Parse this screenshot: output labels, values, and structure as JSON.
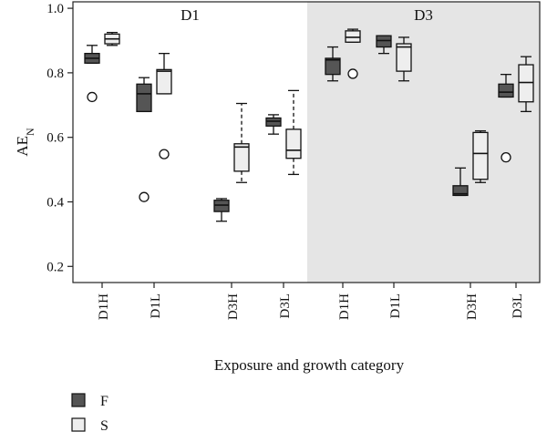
{
  "chart_data": {
    "type": "box",
    "ylabel": "AE",
    "ylabel_sub": "N",
    "xlabel": "Exposure and growth category",
    "ylim": [
      0.15,
      1.02
    ],
    "yticks": [
      {
        "v": 0.2,
        "label": "0.2"
      },
      {
        "v": 0.4,
        "label": "0.4"
      },
      {
        "v": 0.6,
        "label": "0.6"
      },
      {
        "v": 0.8,
        "label": "0.8"
      },
      {
        "v": 1.0,
        "label": "1.0"
      }
    ],
    "panels": [
      {
        "label": "D1",
        "shaded": false,
        "categories": [
          "D1H",
          "D1L",
          "D3H",
          "D3L"
        ]
      },
      {
        "label": "D3",
        "shaded": true,
        "categories": [
          "D1H",
          "D1L",
          "D3H",
          "D3L"
        ]
      }
    ],
    "series": [
      {
        "name": "F",
        "color": "#555555"
      },
      {
        "name": "S",
        "color": "#eeeeee"
      }
    ],
    "boxes": [
      {
        "panel": 0,
        "cat": 0,
        "series": 0,
        "min": 0.83,
        "q1": 0.83,
        "median": 0.845,
        "q3": 0.86,
        "max": 0.885,
        "outliers": [
          0.725
        ],
        "dashed": false
      },
      {
        "panel": 0,
        "cat": 0,
        "series": 1,
        "min": 0.885,
        "q1": 0.89,
        "median": 0.905,
        "q3": 0.92,
        "max": 0.925,
        "outliers": [],
        "dashed": false
      },
      {
        "panel": 0,
        "cat": 1,
        "series": 0,
        "min": 0.68,
        "q1": 0.68,
        "median": 0.735,
        "q3": 0.765,
        "max": 0.785,
        "outliers": [
          0.415
        ],
        "dashed": false
      },
      {
        "panel": 0,
        "cat": 1,
        "series": 1,
        "min": 0.735,
        "q1": 0.735,
        "median": 0.805,
        "q3": 0.81,
        "max": 0.86,
        "outliers": [
          0.548
        ],
        "dashed": false
      },
      {
        "panel": 0,
        "cat": 2,
        "series": 0,
        "min": 0.34,
        "q1": 0.37,
        "median": 0.39,
        "q3": 0.405,
        "max": 0.41,
        "outliers": [],
        "dashed": false
      },
      {
        "panel": 0,
        "cat": 2,
        "series": 1,
        "min": 0.46,
        "q1": 0.495,
        "median": 0.57,
        "q3": 0.58,
        "max": 0.705,
        "outliers": [],
        "dashed": true
      },
      {
        "panel": 0,
        "cat": 3,
        "series": 0,
        "min": 0.61,
        "q1": 0.635,
        "median": 0.65,
        "q3": 0.66,
        "max": 0.67,
        "outliers": [],
        "dashed": false
      },
      {
        "panel": 0,
        "cat": 3,
        "series": 1,
        "min": 0.485,
        "q1": 0.535,
        "median": 0.56,
        "q3": 0.625,
        "max": 0.745,
        "outliers": [],
        "dashed": true
      },
      {
        "panel": 1,
        "cat": 0,
        "series": 0,
        "min": 0.775,
        "q1": 0.795,
        "median": 0.84,
        "q3": 0.845,
        "max": 0.88,
        "outliers": [],
        "dashed": false
      },
      {
        "panel": 1,
        "cat": 0,
        "series": 1,
        "min": 0.895,
        "q1": 0.895,
        "median": 0.91,
        "q3": 0.93,
        "max": 0.935,
        "outliers": [
          0.797
        ],
        "dashed": false
      },
      {
        "panel": 1,
        "cat": 1,
        "series": 0,
        "min": 0.86,
        "q1": 0.88,
        "median": 0.9,
        "q3": 0.915,
        "max": 0.915,
        "outliers": [],
        "dashed": false
      },
      {
        "panel": 1,
        "cat": 1,
        "series": 1,
        "min": 0.775,
        "q1": 0.805,
        "median": 0.88,
        "q3": 0.89,
        "max": 0.91,
        "outliers": [],
        "dashed": false
      },
      {
        "panel": 1,
        "cat": 2,
        "series": 0,
        "min": 0.42,
        "q1": 0.42,
        "median": 0.425,
        "q3": 0.45,
        "max": 0.505,
        "outliers": [],
        "dashed": false
      },
      {
        "panel": 1,
        "cat": 2,
        "series": 1,
        "min": 0.46,
        "q1": 0.47,
        "median": 0.55,
        "q3": 0.615,
        "max": 0.62,
        "outliers": [],
        "dashed": false
      },
      {
        "panel": 1,
        "cat": 3,
        "series": 0,
        "min": 0.725,
        "q1": 0.725,
        "median": 0.74,
        "q3": 0.765,
        "max": 0.795,
        "outliers": [
          0.538
        ],
        "dashed": false
      },
      {
        "panel": 1,
        "cat": 3,
        "series": 1,
        "min": 0.68,
        "q1": 0.71,
        "median": 0.77,
        "q3": 0.825,
        "max": 0.85,
        "outliers": [],
        "dashed": false
      }
    ]
  }
}
